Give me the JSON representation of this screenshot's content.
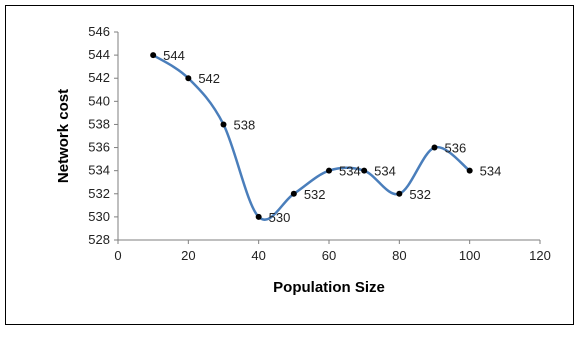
{
  "chart_data": {
    "type": "line",
    "smooth": true,
    "xlabel": "Population Size",
    "ylabel": "Network cost",
    "xlim": [
      0,
      120
    ],
    "ylim": [
      528,
      546
    ],
    "xticks": [
      0,
      20,
      40,
      60,
      80,
      100,
      120
    ],
    "yticks": [
      528,
      530,
      532,
      534,
      536,
      538,
      540,
      542,
      544,
      546
    ],
    "grid": false,
    "legend": "none",
    "series": [
      {
        "x": [
          10,
          20,
          30,
          40,
          50,
          60,
          70,
          80,
          90,
          100
        ],
        "values": [
          544,
          542,
          538,
          530,
          532,
          534,
          534,
          532,
          536,
          534
        ],
        "labels": [
          "544",
          "542",
          "538",
          "530",
          "532",
          "534",
          "534",
          "532",
          "536",
          "534"
        ],
        "color": "#4a7ebb",
        "marker_color": "#000000"
      }
    ]
  }
}
